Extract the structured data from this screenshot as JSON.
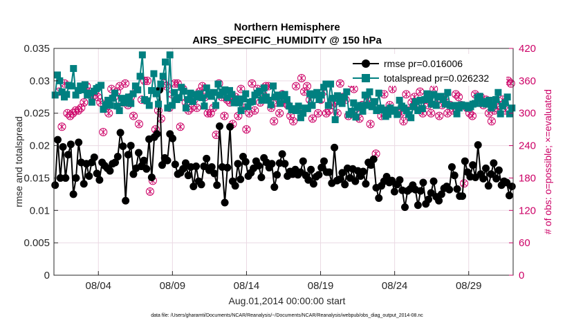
{
  "chart_data": {
    "type": "line",
    "title": "Northern Hemisphere",
    "subtitle": "AIRS_SPECIFIC_HUMIDITY @ 150 hPa",
    "xlabel": "Aug.01,2014 00:00:00 start",
    "ylabel_left": "rmse and totalspread",
    "ylabel_right": "# of obs: o=possible; ×=evaluated",
    "footnote": "data file: /Users/gharamti/Documents/NCAR/Reanalysis/~/Documents/NCAR/Reanalysis/webpub/obs_diag_output_2014-08.nc",
    "x_range_days": [
      1,
      32
    ],
    "x_ticks": [
      {
        "day": 4,
        "label": "08/04"
      },
      {
        "day": 9,
        "label": "08/09"
      },
      {
        "day": 14,
        "label": "08/14"
      },
      {
        "day": 19,
        "label": "08/19"
      },
      {
        "day": 24,
        "label": "08/24"
      },
      {
        "day": 29,
        "label": "08/29"
      }
    ],
    "ylim_left": [
      0,
      0.035
    ],
    "yticks_left": [
      "0",
      "0.005",
      "0.01",
      "0.015",
      "0.02",
      "0.025",
      "0.03",
      "0.035"
    ],
    "ylim_right": [
      0,
      420
    ],
    "yticks_right": [
      "0",
      "60",
      "120",
      "180",
      "240",
      "300",
      "360",
      "420"
    ],
    "series": [
      {
        "name": "rmse pr=0.016006",
        "color": "#000000",
        "marker": "circle",
        "values": [
          0.0139,
          0.0209,
          0.015,
          0.0198,
          0.015,
          0.0186,
          0.0202,
          0.0125,
          0.015,
          0.0205,
          0.0174,
          0.0141,
          0.0172,
          0.0153,
          0.0174,
          0.0182,
          0.0157,
          0.0147,
          0.0174,
          0.0169,
          0.0165,
          0.0161,
          0.0172,
          0.0174,
          0.0183,
          0.022,
          0.0199,
          0.0115,
          0.0186,
          0.02,
          0.0156,
          0.0165,
          0.0189,
          0.0168,
          0.0177,
          0.0164,
          0.021,
          0.0151,
          0.0213,
          0.0218,
          0.0286,
          0.017,
          0.0181,
          0.0177,
          0.0218,
          0.0211,
          0.0171,
          0.0156,
          0.0158,
          0.0164,
          0.0173,
          0.0154,
          0.0167,
          0.0137,
          0.0168,
          0.0145,
          0.014,
          0.0168,
          0.018,
          0.0162,
          0.0167,
          0.0157,
          0.0139,
          0.023,
          0.0167,
          0.0112,
          0.0166,
          0.0229,
          0.0145,
          0.0138,
          0.0172,
          0.0148,
          0.0183,
          0.0175,
          0.0153,
          0.0158,
          0.0165,
          0.0176,
          0.0169,
          0.0151,
          0.0181,
          0.0174,
          0.0166,
          0.0172,
          0.0136,
          0.0155,
          0.0173,
          0.0187,
          0.0172,
          0.0153,
          0.016,
          0.0156,
          0.0163,
          0.0155,
          0.0159,
          0.0176,
          0.0154,
          0.0147,
          0.0163,
          0.0141,
          0.0152,
          0.0155,
          0.0166,
          0.0176,
          0.0159,
          0.0159,
          0.0142,
          0.0197,
          0.0146,
          0.0148,
          0.0158,
          0.014,
          0.0165,
          0.015,
          0.0164,
          0.0145,
          0.0161,
          0.0153,
          0.016,
          0.0141,
          0.0174,
          0.017,
          0.0179,
          0.0135,
          0.0119,
          0.0138,
          0.0145,
          0.0152,
          0.0143,
          0.0146,
          0.0129,
          0.014,
          0.0147,
          0.0131,
          0.0105,
          0.013,
          0.0133,
          0.0139,
          0.0132,
          0.0108,
          0.013,
          0.0143,
          0.011,
          0.0117,
          0.0127,
          0.0145,
          0.0121,
          0.0115,
          0.0125,
          0.0134,
          0.0137,
          0.0132,
          0.0167,
          0.0154,
          0.0133,
          0.0122,
          0.0122,
          0.0176,
          0.0159,
          0.0152,
          0.017,
          0.0151,
          0.0201,
          0.0156,
          0.0149,
          0.0165,
          0.0138,
          0.0156,
          0.0173,
          0.0149,
          0.0162,
          0.0139,
          0.0145,
          0.0143,
          0.0123,
          0.0137
        ]
      },
      {
        "name": "totalspread pr=0.026232",
        "color": "#008080",
        "marker": "square",
        "values": [
          0.0278,
          0.0309,
          0.03,
          0.0283,
          0.0275,
          0.0279,
          0.0293,
          0.0292,
          0.0319,
          0.0278,
          0.0285,
          0.0292,
          0.0286,
          0.0294,
          0.0278,
          0.0281,
          0.0267,
          0.0284,
          0.0288,
          0.029,
          0.0293,
          0.0256,
          0.0263,
          0.027,
          0.0262,
          0.0273,
          0.0281,
          0.0261,
          0.0254,
          0.0273,
          0.0266,
          0.027,
          0.0275,
          0.0265,
          0.028,
          0.0292,
          0.0286,
          0.0307,
          0.034,
          0.0271,
          0.0269,
          0.0262,
          0.0285,
          0.0311,
          0.028,
          0.0264,
          0.0295,
          0.0307,
          0.0329,
          0.0258,
          0.034,
          0.0262,
          0.0282,
          0.0271,
          0.0274,
          0.029,
          0.0284,
          0.0258,
          0.0271,
          0.0281,
          0.0268,
          0.0279,
          0.0275,
          0.028,
          0.0274,
          0.0261,
          0.0289,
          0.0279,
          0.0276,
          0.0282,
          0.0262,
          0.0295,
          0.0278,
          0.0283,
          0.0286,
          0.0274,
          0.0285,
          0.0279,
          0.0266,
          0.0272,
          0.0266,
          0.0254,
          0.0272,
          0.028,
          0.026,
          0.0267,
          0.0268,
          0.0278,
          0.0281,
          0.0284,
          0.027,
          0.0289,
          0.0275,
          0.027,
          0.0263,
          0.0292,
          0.0275,
          0.0278,
          0.0265,
          0.0276,
          0.0279,
          0.0271,
          0.0261,
          0.0255,
          0.0257,
          0.0254,
          0.0261,
          0.0243,
          0.025,
          0.0258,
          0.0257,
          0.028,
          0.0262,
          0.0278,
          0.0282,
          0.0271,
          0.0278,
          0.029,
          0.0295,
          0.0262,
          0.0295,
          0.0273,
          0.024,
          0.0277,
          0.0268,
          0.0265,
          0.0275,
          0.0283,
          0.0248,
          0.0253,
          0.0266,
          0.0244,
          0.0259,
          0.0262,
          0.0253,
          0.0278,
          0.0262,
          0.0283,
          0.026,
          0.0268,
          0.0254,
          0.0281,
          0.0258,
          0.0255,
          0.0245,
          0.0248,
          0.0258,
          0.0253,
          0.0255,
          0.0248,
          0.027,
          0.0261,
          0.0258,
          0.0254,
          0.0248,
          0.0243,
          0.026,
          0.0268,
          0.0254,
          0.027,
          0.0257,
          0.0271,
          0.028,
          0.0272,
          0.0264,
          0.0279,
          0.0262,
          0.0275,
          0.0276,
          0.0271,
          0.0264,
          0.0282,
          0.0262,
          0.0261,
          0.0262,
          0.0249,
          0.0258,
          0.0263,
          0.0261,
          0.0262,
          0.0258,
          0.026,
          0.0264,
          0.0265,
          0.0274,
          0.0276,
          0.0265,
          0.0268,
          0.0264,
          0.027,
          0.0258,
          0.0262,
          0.0271,
          0.0282,
          0.0249,
          0.0261,
          0.0266,
          0.0275,
          0.0249,
          0.0258
        ]
      }
    ],
    "obs_possible": {
      "color": "#cc0066",
      "marker": "circle-open",
      "values": [
        340,
        275,
        355,
        300,
        295,
        300,
        305,
        305,
        310,
        320,
        350,
        340,
        330,
        340,
        330,
        320,
        265,
        310,
        300,
        345,
        330,
        340,
        350,
        320,
        355,
        315,
        330,
        295,
        345,
        280,
        325,
        360,
        360,
        155,
        175,
        270,
        305,
        290,
        355,
        350,
        310,
        335,
        355,
        355,
        275,
        345,
        320,
        305,
        310,
        325,
        310,
        340,
        350,
        330,
        300,
        300,
        310,
        260,
        355,
        330,
        295,
        325,
        320,
        280,
        330,
        295,
        345,
        310,
        270,
        300,
        355,
        305,
        345,
        320,
        335,
        350,
        350,
        310,
        285,
        320,
        300,
        335,
        320,
        315,
        295,
        285,
        350,
        310,
        365,
        340,
        350,
        325,
        290,
        335,
        300,
        325,
        340,
        300,
        305,
        315,
        320,
        300,
        355,
        330,
        325,
        295,
        355,
        345,
        300,
        290,
        315,
        360,
        325,
        280,
        320,
        225,
        360,
        295,
        335,
        305,
        315,
        345,
        360,
        300,
        300,
        285,
        335,
        305,
        320,
        330,
        310,
        340,
        300,
        325,
        315,
        300,
        345,
        325,
        295,
        315,
        330,
        300,
        315,
        305,
        335,
        330,
        315,
        170,
        310,
        300,
        295,
        335,
        320,
        330,
        315,
        325,
        300,
        285,
        305,
        310,
        315,
        325,
        305,
        360,
        355
      ]
    },
    "obs_evaluated": {
      "color": "#cc0066",
      "marker": "x",
      "values": [
        340,
        275,
        355,
        300,
        295,
        300,
        305,
        305,
        310,
        320,
        350,
        340,
        330,
        340,
        330,
        320,
        265,
        310,
        300,
        345,
        330,
        340,
        350,
        320,
        355,
        315,
        330,
        295,
        345,
        280,
        325,
        360,
        360,
        155,
        175,
        270,
        305,
        290,
        355,
        350,
        310,
        335,
        355,
        355,
        275,
        345,
        320,
        305,
        310,
        325,
        310,
        340,
        350,
        330,
        300,
        300,
        310,
        260,
        355,
        330,
        295,
        325,
        320,
        280,
        330,
        295,
        345,
        310,
        270,
        300,
        355,
        305,
        345,
        320,
        335,
        350,
        350,
        310,
        285,
        320,
        300,
        335,
        320,
        315,
        295,
        285,
        350,
        310,
        365,
        340,
        350,
        325,
        290,
        335,
        300,
        325,
        340,
        300,
        305,
        315,
        320,
        300,
        355,
        330,
        325,
        295,
        355,
        345,
        300,
        290,
        315,
        360,
        325,
        280,
        320,
        225,
        360,
        295,
        335,
        305,
        315,
        345,
        360,
        300,
        300,
        285,
        335,
        305,
        320,
        330,
        310,
        340,
        300,
        325,
        315,
        300,
        345,
        325,
        295,
        315,
        330,
        300,
        315,
        305,
        335,
        330,
        315,
        170,
        310,
        300,
        295,
        335,
        320,
        330,
        315,
        325,
        300,
        285,
        305,
        310,
        315,
        325,
        305,
        360,
        355
      ]
    }
  }
}
